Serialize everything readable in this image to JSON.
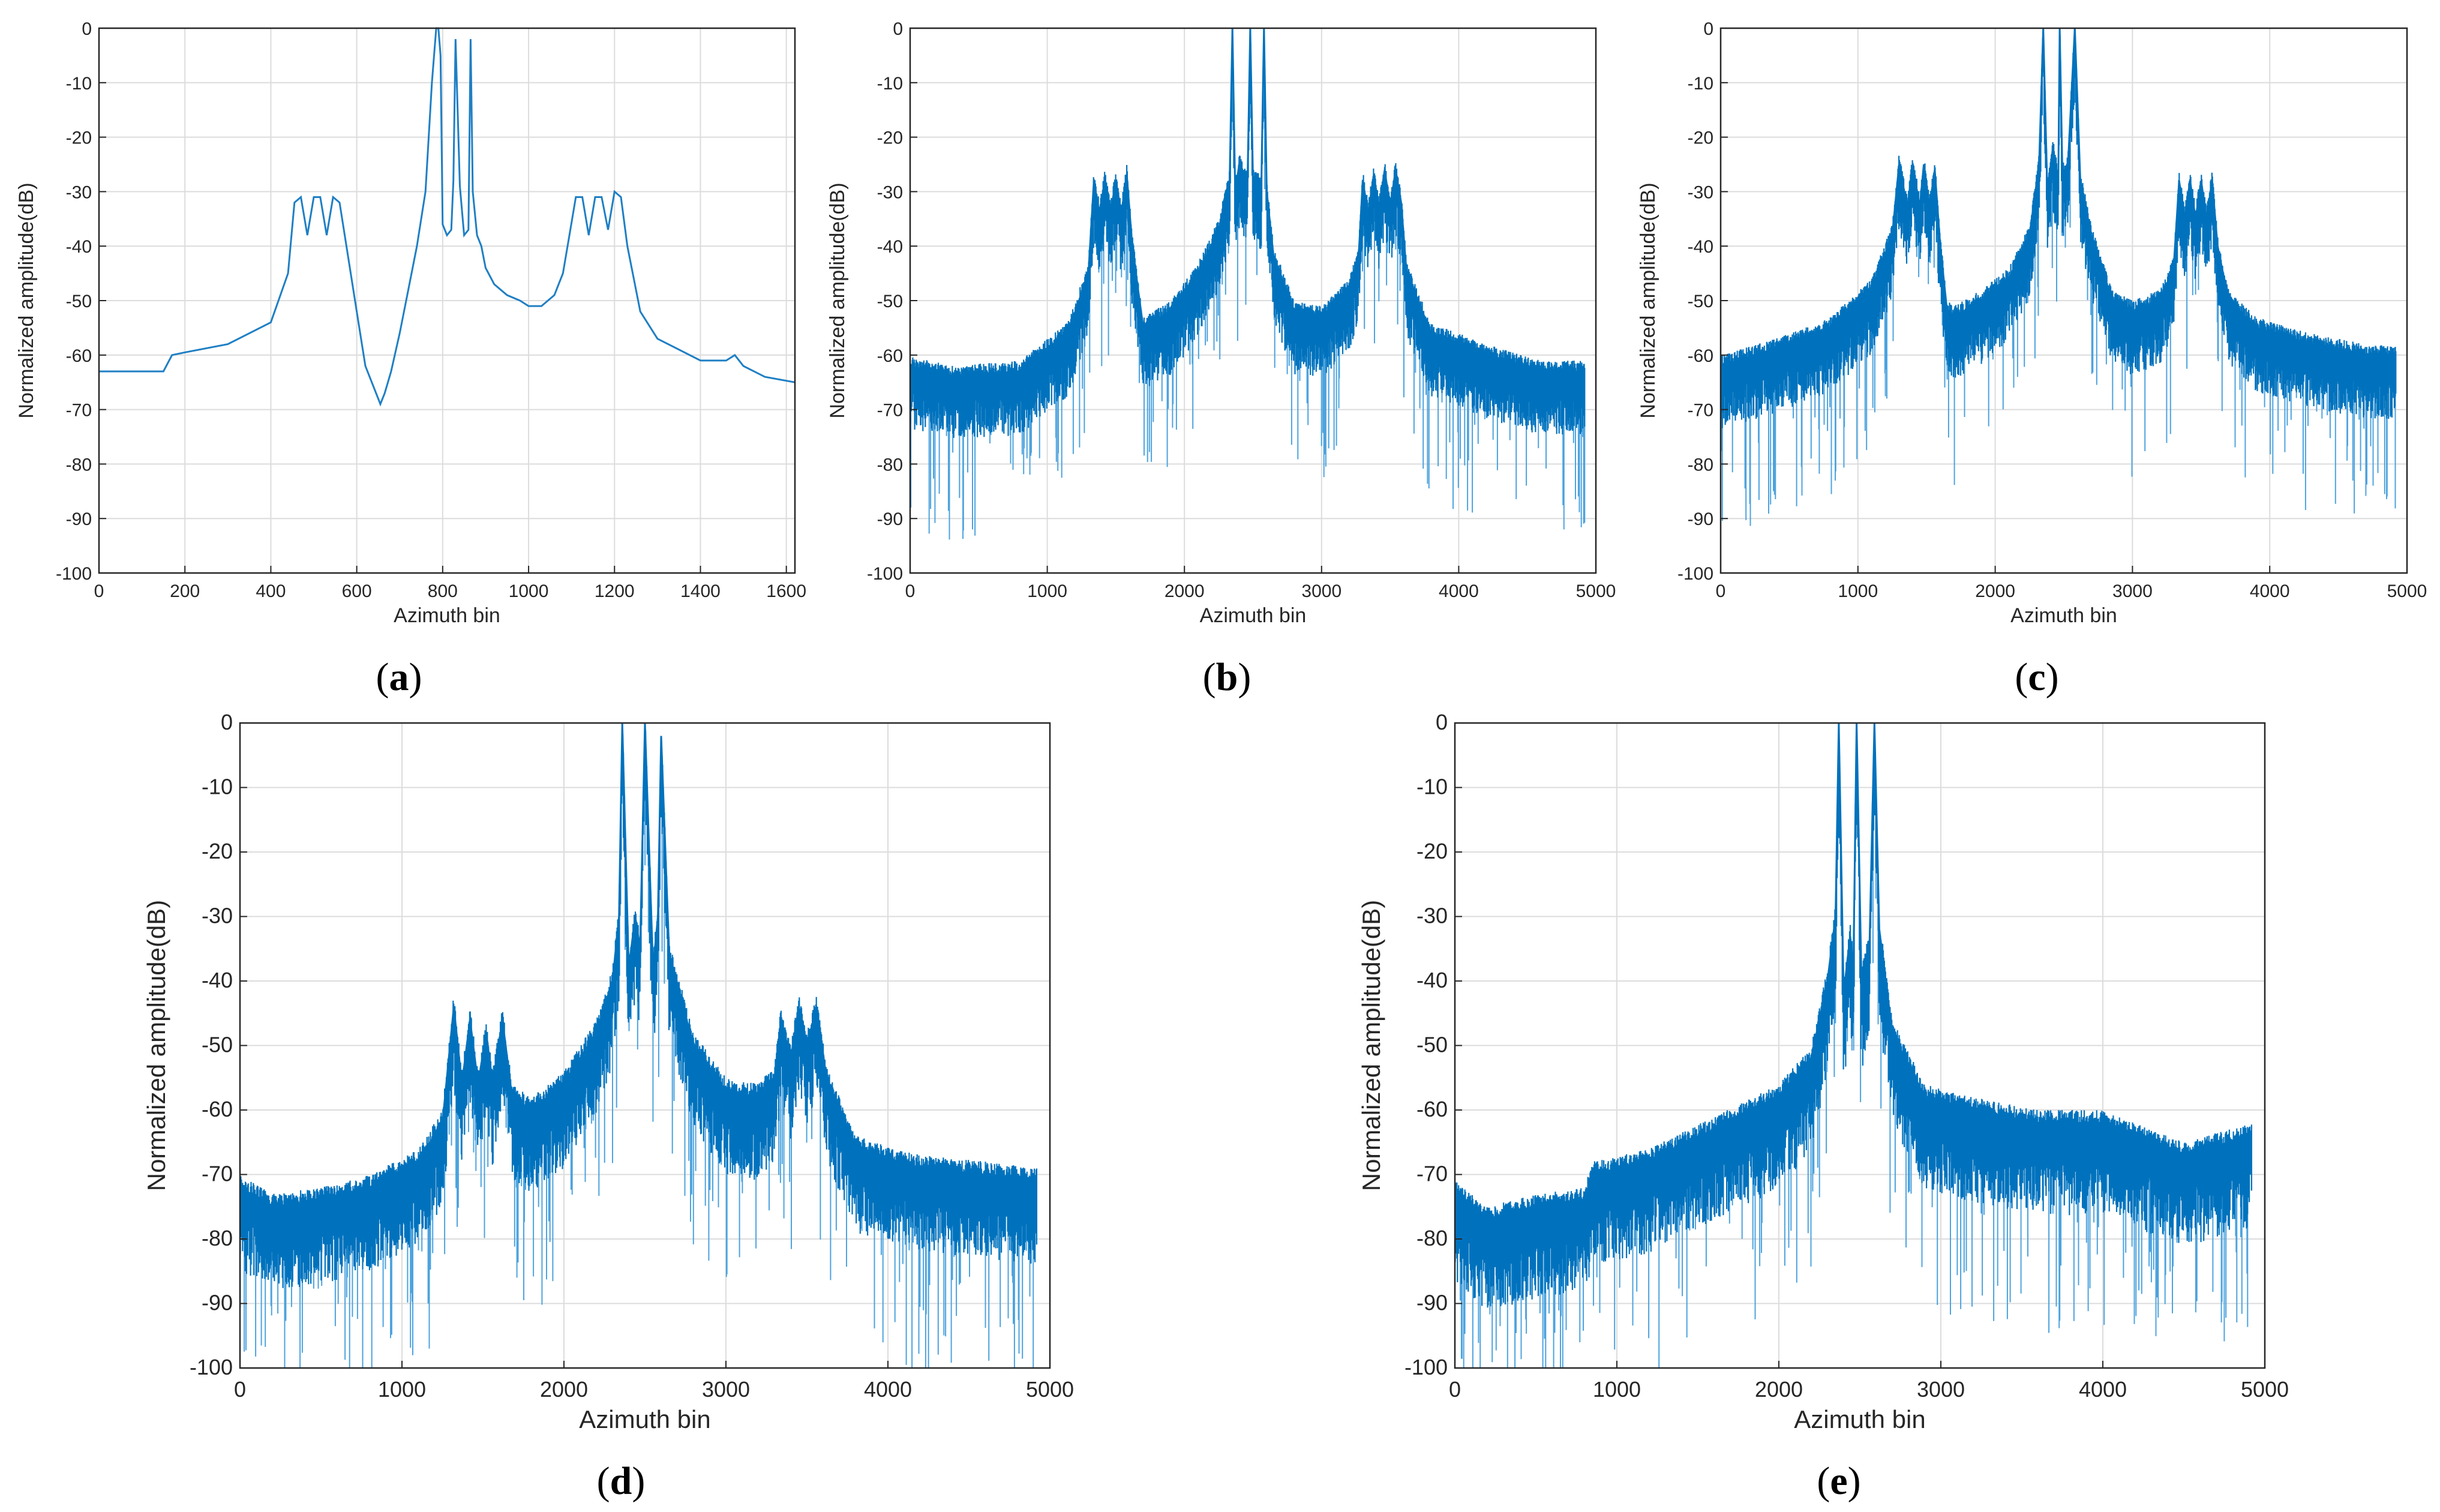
{
  "colors": {
    "line_dark": "#0072BD",
    "line_light": "#4DA3DE",
    "grid": "#dcdcdc",
    "axis": "#262626"
  },
  "chart_data": [
    {
      "panel": "a",
      "type": "line",
      "xlabel": "Azimuth bin",
      "ylabel": "Normalized amplitude(dB)",
      "xlim": [
        0,
        1620
      ],
      "ylim": [
        -100,
        0
      ],
      "xticks": [
        0,
        200,
        400,
        600,
        800,
        1000,
        1200,
        1400,
        1600
      ],
      "yticks": [
        0,
        -10,
        -20,
        -30,
        -40,
        -50,
        -60,
        -70,
        -80,
        -90,
        -100
      ],
      "series": [
        {
          "name": "spectrum",
          "x": [
            0,
            120,
            150,
            170,
            200,
            300,
            400,
            440,
            455,
            470,
            485,
            500,
            515,
            530,
            545,
            560,
            580,
            600,
            620,
            640,
            655,
            665,
            680,
            700,
            720,
            740,
            760,
            775,
            785,
            790,
            795,
            800,
            810,
            820,
            825,
            830,
            840,
            850,
            860,
            865,
            870,
            880,
            890,
            900,
            920,
            950,
            980,
            1000,
            1030,
            1060,
            1080,
            1095,
            1110,
            1125,
            1140,
            1155,
            1170,
            1185,
            1200,
            1215,
            1230,
            1260,
            1300,
            1400,
            1460,
            1480,
            1500,
            1550,
            1620
          ],
          "y": [
            -63,
            -63,
            -63,
            -60,
            -59.5,
            -58,
            -54,
            -45,
            -32,
            -31,
            -38,
            -31,
            -31,
            -38,
            -31,
            -32,
            -42,
            -52,
            -62,
            -66,
            -69,
            -67,
            -63,
            -56,
            -48,
            -40,
            -30,
            -10,
            0,
            0,
            -5,
            -36,
            -38,
            -37,
            -28,
            -2,
            -29,
            -38,
            -37,
            -2,
            -30,
            -38,
            -40,
            -44,
            -47,
            -49,
            -50,
            -51,
            -51,
            -49,
            -45,
            -38,
            -31,
            -31,
            -38,
            -31,
            -31,
            -37,
            -30,
            -31,
            -40,
            -52,
            -57,
            -61,
            -61,
            -60,
            -62,
            -64,
            -65
          ]
        }
      ]
    },
    {
      "panel": "b",
      "type": "line",
      "xlabel": "Azimuth bin",
      "ylabel": "Normalized amplitude(dB)",
      "xlim": [
        0,
        5000
      ],
      "ylim": [
        -100,
        0
      ],
      "xticks": [
        0,
        1000,
        2000,
        3000,
        4000,
        5000
      ],
      "yticks": [
        0,
        -10,
        -20,
        -30,
        -40,
        -50,
        -60,
        -70,
        -80,
        -90,
        -100
      ],
      "series": [
        {
          "name": "spectrum",
          "x": [
            0,
            300,
            800,
            1150,
            1300,
            1340,
            1380,
            1420,
            1460,
            1500,
            1540,
            1580,
            1620,
            1700,
            1900,
            2100,
            2250,
            2330,
            2350,
            2370,
            2400,
            2460,
            2480,
            2500,
            2530,
            2560,
            2580,
            2600,
            2650,
            2800,
            3000,
            3200,
            3270,
            3300,
            3340,
            3380,
            3420,
            3460,
            3500,
            3540,
            3580,
            3620,
            3800,
            4200,
            4600,
            4920
          ],
          "y": [
            -62,
            -64,
            -63,
            -56,
            -45,
            -28,
            -34,
            -28,
            -34,
            -28,
            -34,
            -27,
            -40,
            -55,
            -52,
            -45,
            -37,
            -28,
            0,
            -30,
            -25,
            -28,
            0,
            -28,
            -28,
            -30,
            0,
            -30,
            -42,
            -52,
            -53,
            -48,
            -42,
            -28,
            -34,
            -27,
            -33,
            -26,
            -33,
            -26,
            -32,
            -45,
            -56,
            -60,
            -63,
            -63
          ]
        }
      ]
    },
    {
      "panel": "c",
      "type": "line",
      "xlabel": "Azimuth bin",
      "ylabel": "Normalized amplitude(dB)",
      "xlim": [
        0,
        5000
      ],
      "ylim": [
        -100,
        0
      ],
      "xticks": [
        0,
        1000,
        2000,
        3000,
        4000,
        5000
      ],
      "yticks": [
        0,
        -10,
        -20,
        -30,
        -40,
        -50,
        -60,
        -70,
        -80,
        -90,
        -100
      ],
      "series": [
        {
          "name": "spectrum",
          "x": [
            0,
            400,
            800,
            1100,
            1250,
            1300,
            1360,
            1400,
            1450,
            1480,
            1520,
            1560,
            1600,
            1650,
            1700,
            1900,
            2100,
            2250,
            2320,
            2350,
            2380,
            2420,
            2460,
            2470,
            2490,
            2530,
            2580,
            2620,
            2700,
            2850,
            3000,
            3200,
            3300,
            3340,
            3380,
            3420,
            3460,
            3500,
            3540,
            3580,
            3620,
            3700,
            3900,
            4300,
            4700,
            4920
          ],
          "y": [
            -62,
            -59,
            -55,
            -48,
            -38,
            -25,
            -33,
            -25,
            -33,
            -25,
            -33,
            -26,
            -40,
            -52,
            -53,
            -50,
            -46,
            -38,
            -25,
            0,
            -30,
            -22,
            -28,
            0,
            -27,
            -25,
            0,
            -28,
            -38,
            -50,
            -52,
            -50,
            -44,
            -28,
            -35,
            -28,
            -35,
            -28,
            -35,
            -28,
            -40,
            -50,
            -55,
            -58,
            -60,
            -60
          ]
        }
      ]
    },
    {
      "panel": "d",
      "type": "line",
      "xlabel": "Azimuth bin",
      "ylabel": "Normalized amplitude(dB)",
      "xlim": [
        0,
        5000
      ],
      "ylim": [
        -100,
        0
      ],
      "xticks": [
        0,
        1000,
        2000,
        3000,
        4000,
        5000
      ],
      "yticks": [
        0,
        -10,
        -20,
        -30,
        -40,
        -50,
        -60,
        -70,
        -80,
        -90,
        -100
      ],
      "series": [
        {
          "name": "spectrum",
          "x": [
            0,
            200,
            500,
            800,
            1100,
            1250,
            1320,
            1370,
            1420,
            1470,
            1520,
            1560,
            1620,
            1680,
            1800,
            2000,
            2200,
            2300,
            2340,
            2360,
            2400,
            2440,
            2470,
            2500,
            2550,
            2580,
            2600,
            2650,
            2800,
            3000,
            3200,
            3300,
            3340,
            3400,
            3450,
            3500,
            3560,
            3620,
            3800,
            4200,
            4600,
            4920
          ],
          "y": [
            -72,
            -75,
            -74,
            -72,
            -68,
            -62,
            -44,
            -56,
            -46,
            -56,
            -48,
            -56,
            -46,
            -58,
            -60,
            -56,
            -48,
            -40,
            -30,
            0,
            -38,
            -30,
            -35,
            0,
            -38,
            -30,
            -2,
            -36,
            -50,
            -57,
            -58,
            -55,
            -46,
            -52,
            -44,
            -50,
            -44,
            -55,
            -66,
            -69,
            -70,
            -71
          ]
        }
      ]
    },
    {
      "panel": "e",
      "type": "line",
      "xlabel": "Azimuth bin",
      "ylabel": "Normalized amplitude(dB)",
      "xlim": [
        0,
        5000
      ],
      "ylim": [
        -100,
        0
      ],
      "xticks": [
        0,
        1000,
        2000,
        3000,
        4000,
        5000
      ],
      "yticks": [
        0,
        -10,
        -20,
        -30,
        -40,
        -50,
        -60,
        -70,
        -80,
        -90,
        -100
      ],
      "series": [
        {
          "name": "spectrum",
          "x": [
            0,
            200,
            500,
            800,
            850,
            1200,
            1600,
            2000,
            2200,
            2300,
            2350,
            2370,
            2400,
            2440,
            2460,
            2480,
            2510,
            2560,
            2590,
            2620,
            2700,
            2900,
            3200,
            3600,
            4000,
            4500,
            4920
          ],
          "y": [
            -73,
            -77,
            -75,
            -74,
            -70,
            -68,
            -63,
            -58,
            -52,
            -40,
            -30,
            0,
            -42,
            -33,
            -38,
            0,
            -40,
            -34,
            0,
            -32,
            -48,
            -58,
            -60,
            -62,
            -62,
            -67,
            -64
          ]
        }
      ]
    }
  ],
  "panels": [
    {
      "label": "a"
    },
    {
      "label": "b"
    },
    {
      "label": "c"
    },
    {
      "label": "d"
    },
    {
      "label": "e"
    }
  ]
}
